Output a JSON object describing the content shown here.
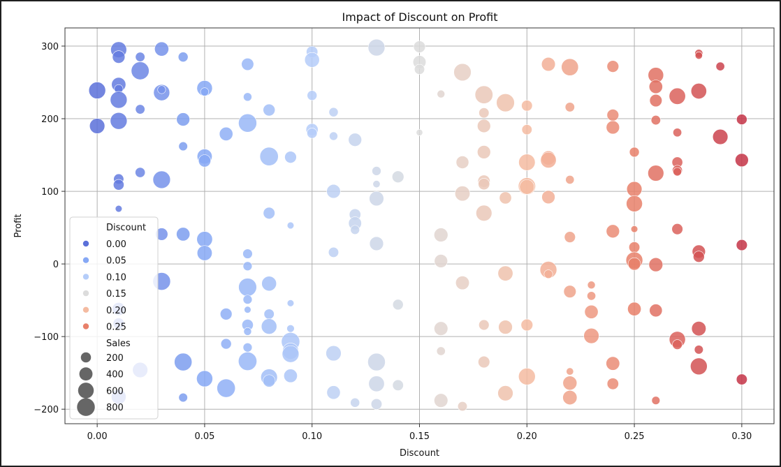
{
  "chart_data": {
    "type": "scatter",
    "title": "Impact of Discount on Profit",
    "xlabel": "Discount",
    "ylabel": "Profit",
    "xlim": [
      -0.015,
      0.315
    ],
    "ylim": [
      -220,
      325
    ],
    "xticks": [
      0.0,
      0.05,
      0.1,
      0.15,
      0.2,
      0.25,
      0.3
    ],
    "xtick_labels": [
      "0.00",
      "0.05",
      "0.10",
      "0.15",
      "0.20",
      "0.25",
      "0.30"
    ],
    "yticks": [
      -200,
      -100,
      0,
      100,
      200,
      300
    ],
    "ytick_labels": [
      "−200",
      "−100",
      "0",
      "100",
      "200",
      "300"
    ],
    "grid": true,
    "legend_position": "lower-left",
    "hue_title": "Discount",
    "hue_entries": [
      {
        "label": "0.00",
        "value": 0.0,
        "color": "#5b70d9"
      },
      {
        "label": "0.05",
        "value": 0.05,
        "color": "#86a8f5"
      },
      {
        "label": "0.10",
        "value": 0.1,
        "color": "#b5cdf9"
      },
      {
        "label": "0.15",
        "value": 0.15,
        "color": "#dcdcdc"
      },
      {
        "label": "0.20",
        "value": 0.2,
        "color": "#f4bba1"
      },
      {
        "label": "0.25",
        "value": 0.25,
        "color": "#e8806a"
      }
    ],
    "size_title": "Sales",
    "size_entries": [
      {
        "label": "200",
        "value": 200
      },
      {
        "label": "400",
        "value": 400
      },
      {
        "label": "600",
        "value": 600
      },
      {
        "label": "800",
        "value": 800
      }
    ],
    "size_range": [
      10,
      950
    ],
    "points": [
      [
        0.0,
        239,
        700
      ],
      [
        0.0,
        190,
        560
      ],
      [
        0.01,
        295,
        620
      ],
      [
        0.01,
        285,
        350
      ],
      [
        0.01,
        247,
        480
      ],
      [
        0.01,
        241,
        120
      ],
      [
        0.01,
        226,
        700
      ],
      [
        0.01,
        197,
        700
      ],
      [
        0.01,
        117,
        200
      ],
      [
        0.01,
        109,
        230
      ],
      [
        0.01,
        76,
        40
      ],
      [
        0.01,
        -62,
        380
      ],
      [
        0.01,
        -82,
        260
      ],
      [
        0.01,
        -183,
        520
      ],
      [
        0.02,
        285,
        160
      ],
      [
        0.02,
        266,
        800
      ],
      [
        0.02,
        213,
        160
      ],
      [
        0.02,
        126,
        190
      ],
      [
        0.02,
        -146,
        560
      ],
      [
        0.03,
        296,
        470
      ],
      [
        0.03,
        236,
        640
      ],
      [
        0.03,
        240,
        90
      ],
      [
        0.03,
        116,
        760
      ],
      [
        0.03,
        41,
        340
      ],
      [
        0.03,
        -24,
        780
      ],
      [
        0.04,
        285,
        180
      ],
      [
        0.04,
        199,
        400
      ],
      [
        0.04,
        162,
        130
      ],
      [
        0.04,
        41,
        420
      ],
      [
        0.04,
        -135,
        780
      ],
      [
        0.04,
        -184,
        130
      ],
      [
        0.05,
        242,
        580
      ],
      [
        0.05,
        237,
        100
      ],
      [
        0.05,
        148,
        540
      ],
      [
        0.05,
        142,
        330
      ],
      [
        0.05,
        34,
        600
      ],
      [
        0.05,
        15,
        540
      ],
      [
        0.05,
        -158,
        640
      ],
      [
        0.06,
        179,
        420
      ],
      [
        0.06,
        -69,
        300
      ],
      [
        0.06,
        -110,
        220
      ],
      [
        0.06,
        -171,
        850
      ],
      [
        0.07,
        275,
        330
      ],
      [
        0.07,
        230,
        110
      ],
      [
        0.07,
        194,
        840
      ],
      [
        0.07,
        14,
        170
      ],
      [
        0.07,
        -3,
        140
      ],
      [
        0.07,
        -32,
        820
      ],
      [
        0.07,
        -49,
        140
      ],
      [
        0.07,
        -63,
        40
      ],
      [
        0.07,
        -84,
        270
      ],
      [
        0.07,
        -93,
        80
      ],
      [
        0.07,
        -115,
        140
      ],
      [
        0.07,
        -134,
        860
      ],
      [
        0.08,
        212,
        310
      ],
      [
        0.08,
        148,
        860
      ],
      [
        0.08,
        70,
        290
      ],
      [
        0.08,
        -27,
        520
      ],
      [
        0.08,
        -69,
        200
      ],
      [
        0.08,
        -86,
        580
      ],
      [
        0.08,
        -156,
        680
      ],
      [
        0.08,
        -161,
        330
      ],
      [
        0.09,
        147,
        300
      ],
      [
        0.09,
        53,
        40
      ],
      [
        0.09,
        -54,
        40
      ],
      [
        0.09,
        -89,
        70
      ],
      [
        0.09,
        -107,
        850
      ],
      [
        0.09,
        -120,
        640
      ],
      [
        0.09,
        -124,
        700
      ],
      [
        0.09,
        -154,
        420
      ],
      [
        0.1,
        292,
        280
      ],
      [
        0.1,
        281,
        520
      ],
      [
        0.1,
        232,
        180
      ],
      [
        0.1,
        185,
        320
      ],
      [
        0.1,
        180,
        200
      ],
      [
        0.11,
        209,
        150
      ],
      [
        0.11,
        176,
        110
      ],
      [
        0.11,
        100,
        440
      ],
      [
        0.11,
        16,
        200
      ],
      [
        0.11,
        -123,
        560
      ],
      [
        0.11,
        -177,
        420
      ],
      [
        0.12,
        171,
        400
      ],
      [
        0.12,
        68,
        280
      ],
      [
        0.12,
        56,
        380
      ],
      [
        0.12,
        47,
        140
      ],
      [
        0.12,
        -191,
        150
      ],
      [
        0.13,
        298,
        700
      ],
      [
        0.13,
        128,
        140
      ],
      [
        0.13,
        110,
        60
      ],
      [
        0.13,
        90,
        500
      ],
      [
        0.13,
        28,
        450
      ],
      [
        0.13,
        -135,
        770
      ],
      [
        0.13,
        -165,
        600
      ],
      [
        0.13,
        -193,
        240
      ],
      [
        0.14,
        120,
        300
      ],
      [
        0.14,
        -56,
        220
      ],
      [
        0.14,
        -167,
        240
      ],
      [
        0.15,
        299,
        300
      ],
      [
        0.15,
        278,
        380
      ],
      [
        0.15,
        268,
        200
      ],
      [
        0.15,
        181,
        30
      ],
      [
        0.16,
        234,
        80
      ],
      [
        0.16,
        40,
        450
      ],
      [
        0.16,
        4,
        400
      ],
      [
        0.16,
        -89,
        440
      ],
      [
        0.16,
        -120,
        120
      ],
      [
        0.16,
        -188,
        440
      ],
      [
        0.17,
        264,
        750
      ],
      [
        0.17,
        140,
        360
      ],
      [
        0.17,
        97,
        540
      ],
      [
        0.17,
        -26,
        430
      ],
      [
        0.17,
        -196,
        160
      ],
      [
        0.18,
        233,
        800
      ],
      [
        0.18,
        208,
        200
      ],
      [
        0.18,
        190,
        400
      ],
      [
        0.18,
        154,
        400
      ],
      [
        0.18,
        114,
        330
      ],
      [
        0.18,
        110,
        280
      ],
      [
        0.18,
        70,
        620
      ],
      [
        0.18,
        -84,
        210
      ],
      [
        0.18,
        -135,
        290
      ],
      [
        0.19,
        222,
        820
      ],
      [
        0.19,
        91,
        320
      ],
      [
        0.19,
        -13,
        540
      ],
      [
        0.19,
        -87,
        450
      ],
      [
        0.19,
        -178,
        560
      ],
      [
        0.2,
        218,
        240
      ],
      [
        0.2,
        185,
        200
      ],
      [
        0.2,
        140,
        670
      ],
      [
        0.2,
        107,
        740
      ],
      [
        0.2,
        106,
        510
      ],
      [
        0.2,
        -84,
        300
      ],
      [
        0.2,
        -155,
        700
      ],
      [
        0.21,
        275,
        440
      ],
      [
        0.21,
        146,
        470
      ],
      [
        0.21,
        143,
        600
      ],
      [
        0.21,
        92,
        400
      ],
      [
        0.21,
        -8,
        700
      ],
      [
        0.21,
        -14,
        120
      ],
      [
        0.22,
        271,
        720
      ],
      [
        0.22,
        216,
        160
      ],
      [
        0.22,
        116,
        120
      ],
      [
        0.22,
        37,
        250
      ],
      [
        0.22,
        -38,
        340
      ],
      [
        0.22,
        -148,
        60
      ],
      [
        0.22,
        -164,
        460
      ],
      [
        0.22,
        -184,
        480
      ],
      [
        0.23,
        -29,
        80
      ],
      [
        0.23,
        -44,
        120
      ],
      [
        0.23,
        -66,
        420
      ],
      [
        0.23,
        -99,
        560
      ],
      [
        0.24,
        272,
        300
      ],
      [
        0.24,
        205,
        300
      ],
      [
        0.24,
        188,
        400
      ],
      [
        0.24,
        45,
        400
      ],
      [
        0.24,
        -137,
        430
      ],
      [
        0.24,
        -165,
        280
      ],
      [
        0.25,
        154,
        180
      ],
      [
        0.25,
        103,
        560
      ],
      [
        0.25,
        83,
        640
      ],
      [
        0.25,
        48,
        40
      ],
      [
        0.25,
        23,
        240
      ],
      [
        0.25,
        5,
        700
      ],
      [
        0.25,
        0,
        350
      ],
      [
        0.25,
        -62,
        420
      ],
      [
        0.26,
        260,
        580
      ],
      [
        0.26,
        244,
        420
      ],
      [
        0.26,
        225,
        340
      ],
      [
        0.26,
        198,
        160
      ],
      [
        0.26,
        125,
        620
      ],
      [
        0.26,
        -1,
        450
      ],
      [
        0.26,
        -64,
        370
      ],
      [
        0.26,
        -188,
        100
      ],
      [
        0.27,
        231,
        660
      ],
      [
        0.27,
        181,
        120
      ],
      [
        0.27,
        140,
        230
      ],
      [
        0.27,
        129,
        190
      ],
      [
        0.27,
        127,
        110
      ],
      [
        0.27,
        48,
        250
      ],
      [
        0.27,
        -104,
        640
      ],
      [
        0.27,
        -111,
        180
      ],
      [
        0.28,
        290,
        90
      ],
      [
        0.28,
        287,
        60
      ],
      [
        0.28,
        238,
        590
      ],
      [
        0.28,
        17,
        400
      ],
      [
        0.28,
        10,
        260
      ],
      [
        0.28,
        -89,
        490
      ],
      [
        0.28,
        -118,
        130
      ],
      [
        0.28,
        -141,
        700
      ],
      [
        0.29,
        272,
        120
      ],
      [
        0.29,
        175,
        560
      ],
      [
        0.3,
        199,
        220
      ],
      [
        0.3,
        143,
        400
      ],
      [
        0.3,
        26,
        250
      ],
      [
        0.3,
        -159,
        240
      ]
    ]
  }
}
